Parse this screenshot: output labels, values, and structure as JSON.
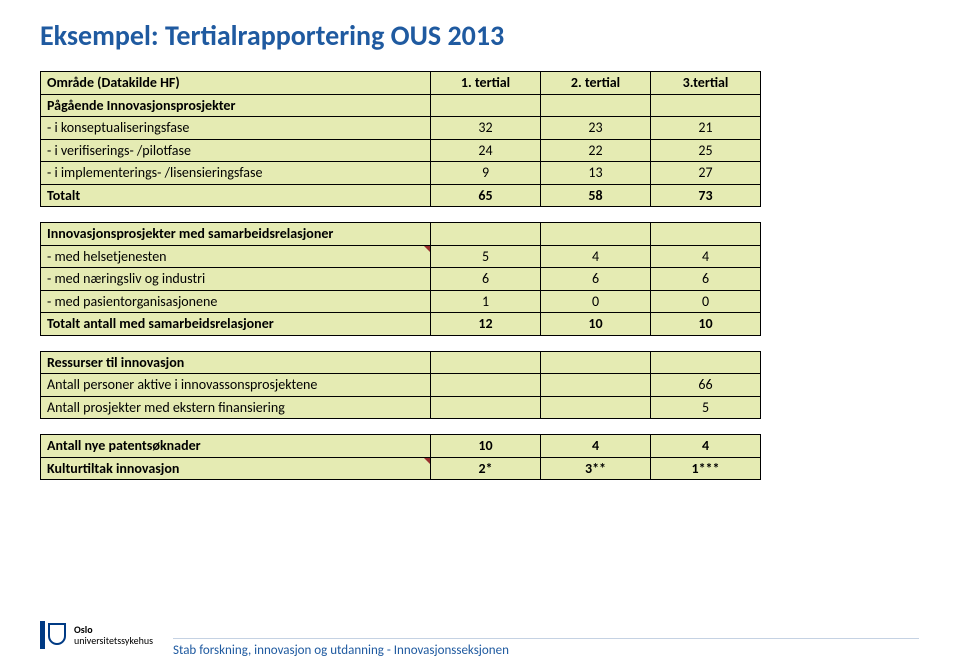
{
  "title": "Eksempel: Tertialrapportering OUS 2013",
  "cols": {
    "c0": "Område (Datakilde HF)",
    "c1": "1. tertial",
    "c2": "2. tertial",
    "c3": "3.tertial"
  },
  "s1": {
    "header": "Pågående Innovasjonsprosjekter",
    "r1": {
      "l": " - i konseptualiseringsfase",
      "v1": "32",
      "v2": "23",
      "v3": "21"
    },
    "r2": {
      "l": " - i verifiserings- /pilotfase",
      "v1": "24",
      "v2": "22",
      "v3": "25"
    },
    "r3": {
      "l": " - i implementerings- /lisensieringsfase",
      "v1": "9",
      "v2": "13",
      "v3": "27"
    },
    "total": {
      "l": "Totalt",
      "v1": "65",
      "v2": "58",
      "v3": "73"
    }
  },
  "s2": {
    "header": "Innovasjonsprosjekter med samarbeidsrelasjoner",
    "r1": {
      "l": " - med helsetjenesten",
      "v1": "5",
      "v2": "4",
      "v3": "4"
    },
    "r2": {
      "l": " - med næringsliv og industri",
      "v1": "6",
      "v2": "6",
      "v3": "6"
    },
    "r3": {
      "l": " - med pasientorganisasjonene",
      "v1": "1",
      "v2": "0",
      "v3": "0"
    },
    "total": {
      "l": "Totalt antall med samarbeidsrelasjoner",
      "v1": "12",
      "v2": "10",
      "v3": "10"
    }
  },
  "s3": {
    "header": "Ressurser til innovasjon",
    "r1": {
      "l": "Antall personer aktive i innovassonsprosjektene",
      "v3": "66"
    },
    "r2": {
      "l": "Antall prosjekter med ekstern finansiering",
      "v3": "5"
    }
  },
  "s4": {
    "r1": {
      "l": "Antall nye patentsøknader",
      "v1": "10",
      "v2": "4",
      "v3": "4"
    },
    "r2": {
      "l": "Kulturtiltak innovasjon",
      "v1": "2*",
      "v2": "3**",
      "v3": "1***"
    }
  },
  "footer": {
    "org1": "Oslo",
    "org2": "universitetssykehus",
    "text": "Stab forskning, innovasjon og utdanning - Innovasjonsseksjonen"
  },
  "colors": {
    "title": "#1f5aa0",
    "cell_bg": "#e5ebb3",
    "border": "#000000",
    "footer_line": "#c5d2e3",
    "logo_blue": "#003a84",
    "corner_mark": "#9a2f2f"
  }
}
